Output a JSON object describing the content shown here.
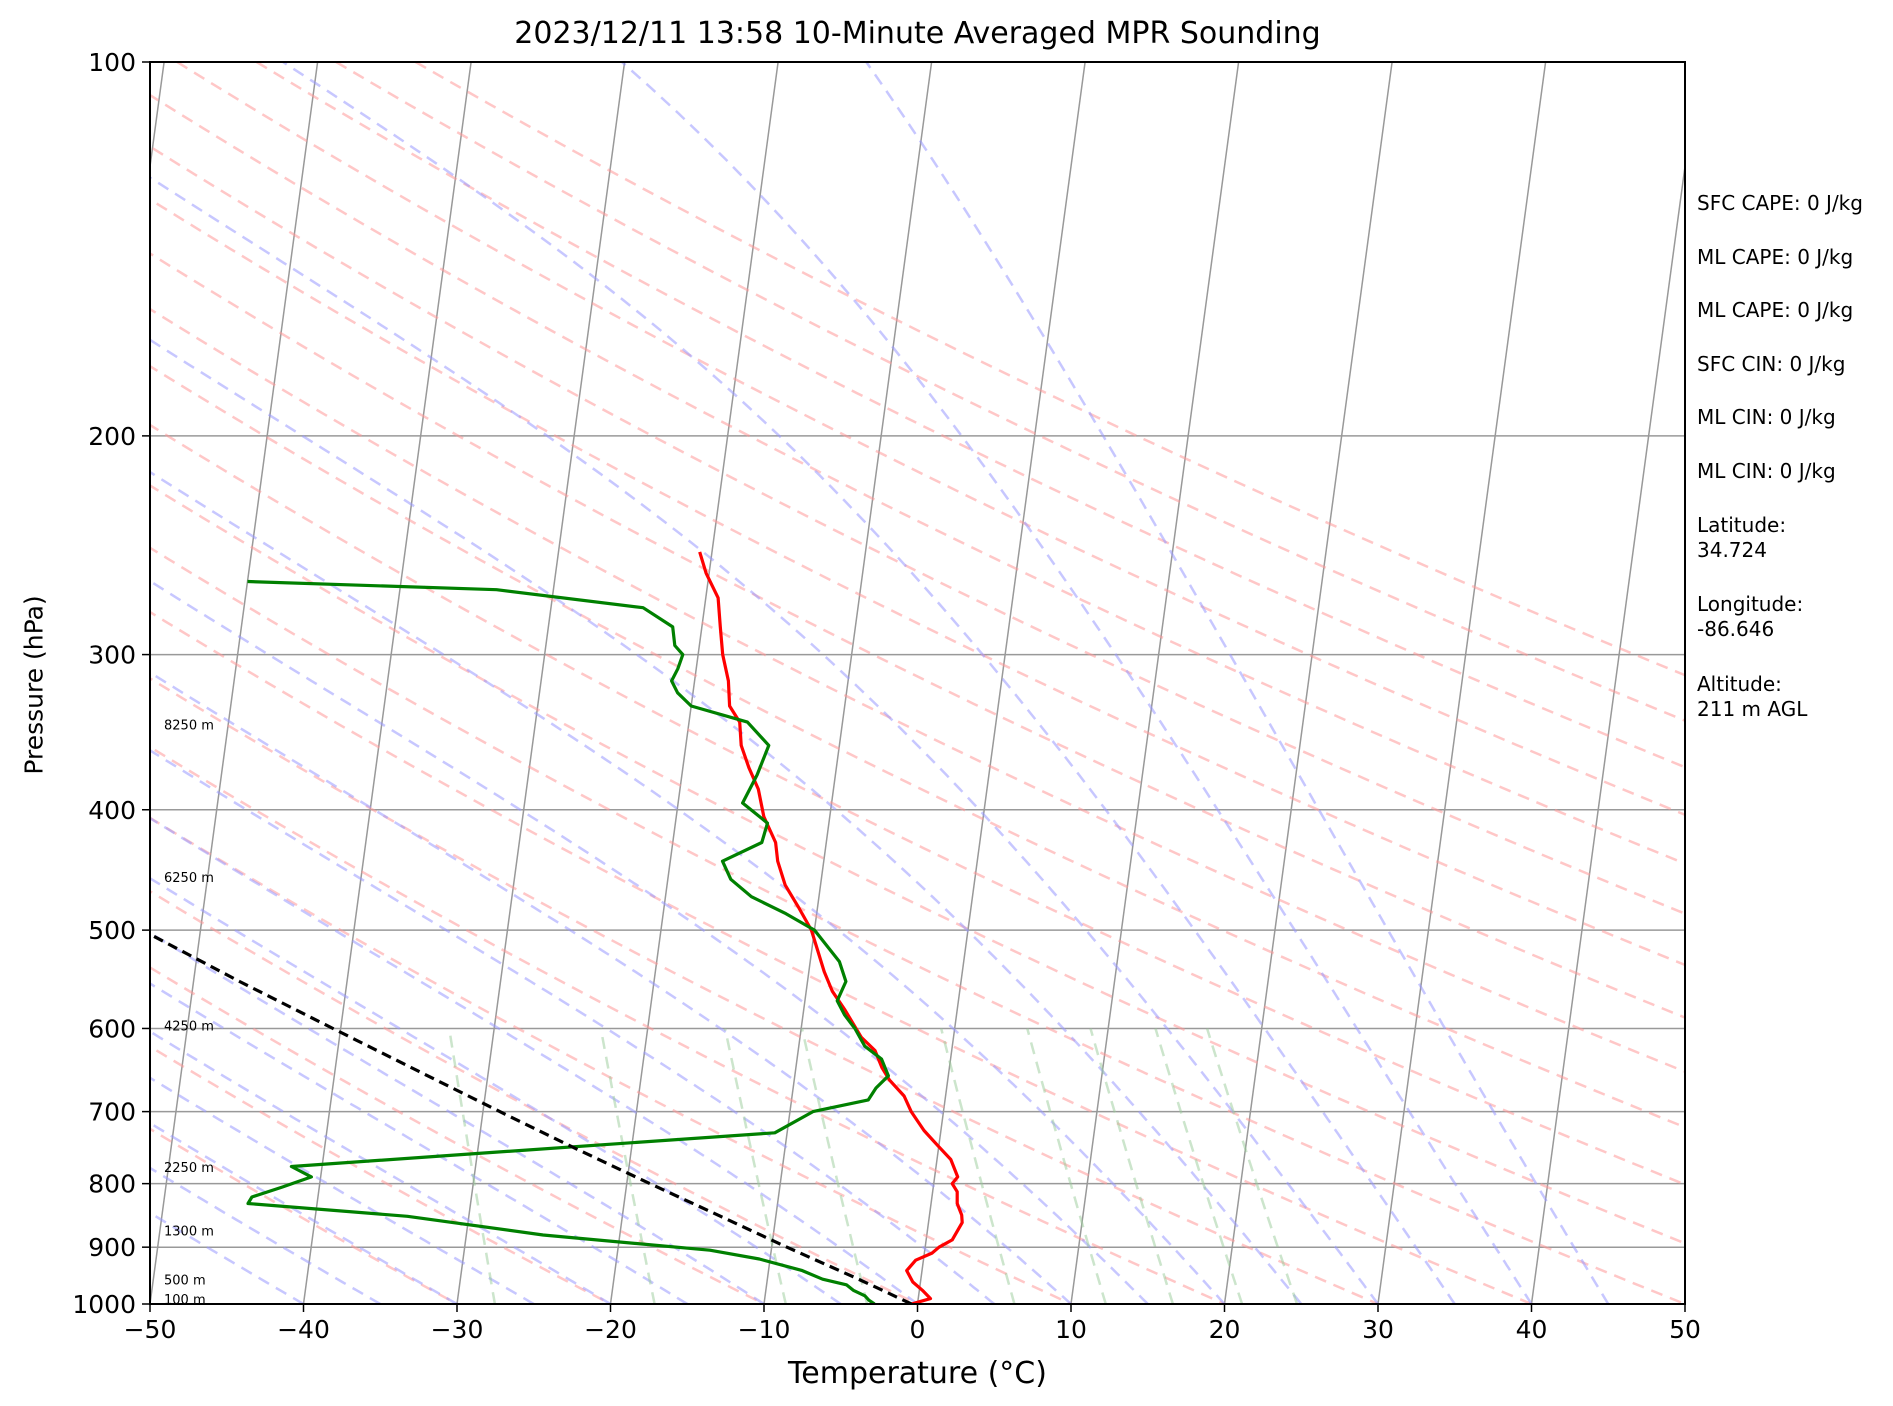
{
  "title": "2023/12/11 13:58 10-Minute Averaged MPR Sounding",
  "side_panel": {
    "sfc_cape": "SFC CAPE: 0 J/kg",
    "ml_cape_1": "ML CAPE: 0 J/kg",
    "ml_cape_2": "ML CAPE: 0 J/kg",
    "sfc_cin": "SFC CIN: 0 J/kg",
    "ml_cin_1": "ML CIN: 0 J/kg",
    "ml_cin_2": "ML CIN: 0 J/kg",
    "latitude_label": "Latitude:",
    "latitude_value": "34.724",
    "longitude_label": "Longitude:",
    "longitude_value": "-86.646",
    "altitude_label": "Altitude:",
    "altitude_value": "211 m AGL"
  },
  "colors": {
    "temperature": "#ff0000",
    "dewpoint": "#008000",
    "parcel": "#000000",
    "dry_adiabat": "#ff9999",
    "moist_adiabat": "#9999ff",
    "mixing_ratio": "#99cc99",
    "isotherm": "#999999",
    "isobar": "#999999"
  },
  "chart_data": {
    "type": "line",
    "title": "2023/12/11 13:58 10-Minute Averaged MPR Sounding",
    "xlabel": "Temperature (°C)",
    "ylabel": "Pressure (hPa)",
    "xlim": [
      -50,
      50
    ],
    "ylim": [
      1000,
      100
    ],
    "y_scale": "log",
    "x_ticks": [
      "−50",
      "−40",
      "−30",
      "−20",
      "−10",
      "0",
      "10",
      "20",
      "30",
      "40",
      "50"
    ],
    "x_tick_values": [
      -50,
      -40,
      -30,
      -20,
      -10,
      0,
      10,
      20,
      30,
      40,
      50
    ],
    "y_ticks": [
      "100",
      "200",
      "300",
      "400",
      "500",
      "600",
      "700",
      "800",
      "900",
      "1000"
    ],
    "y_tick_values": [
      100,
      200,
      300,
      400,
      500,
      600,
      700,
      800,
      900,
      1000
    ],
    "grid": "isobars",
    "skew": "skew-T log-P",
    "height_labels": [
      {
        "text": "8250 m",
        "p": 342
      },
      {
        "text": "6250 m",
        "p": 454
      },
      {
        "text": "4250 m",
        "p": 598
      },
      {
        "text": "2250 m",
        "p": 777
      },
      {
        "text": "1300 m",
        "p": 874
      },
      {
        "text": "500 m",
        "p": 957
      },
      {
        "text": "100 m",
        "p": 993
      }
    ],
    "series": [
      {
        "key": "temperature",
        "points": [
          [
            1000,
            -0.4
          ],
          [
            990,
            0.8
          ],
          [
            975,
            0.2
          ],
          [
            960,
            -0.5
          ],
          [
            940,
            -1.0
          ],
          [
            922,
            -0.5
          ],
          [
            910,
            0.5
          ],
          [
            900,
            0.9
          ],
          [
            888,
            1.7
          ],
          [
            860,
            2.2
          ],
          [
            848,
            2.1
          ],
          [
            830,
            1.7
          ],
          [
            812,
            1.6
          ],
          [
            800,
            1.2
          ],
          [
            790,
            1.5
          ],
          [
            765,
            0.9
          ],
          [
            745,
            -0.1
          ],
          [
            725,
            -1.1
          ],
          [
            700,
            -2.1
          ],
          [
            680,
            -2.7
          ],
          [
            660,
            -3.8
          ],
          [
            645,
            -4.4
          ],
          [
            625,
            -5.0
          ],
          [
            610,
            -6.0
          ],
          [
            580,
            -7.3
          ],
          [
            560,
            -8.3
          ],
          [
            540,
            -9.0
          ],
          [
            500,
            -10.2
          ],
          [
            480,
            -11.2
          ],
          [
            460,
            -12.3
          ],
          [
            440,
            -13.0
          ],
          [
            425,
            -13.3
          ],
          [
            405,
            -14.3
          ],
          [
            385,
            -14.9
          ],
          [
            370,
            -15.7
          ],
          [
            355,
            -16.4
          ],
          [
            340,
            -16.7
          ],
          [
            330,
            -17.5
          ],
          [
            315,
            -17.8
          ],
          [
            300,
            -18.4
          ],
          [
            285,
            -18.8
          ],
          [
            270,
            -19.2
          ],
          [
            258,
            -20.2
          ],
          [
            248,
            -20.8
          ]
        ]
      },
      {
        "key": "dewpoint",
        "points": [
          [
            1000,
            -2.8
          ],
          [
            993,
            -3.2
          ],
          [
            985,
            -3.5
          ],
          [
            975,
            -4.3
          ],
          [
            965,
            -4.8
          ],
          [
            955,
            -6.4
          ],
          [
            940,
            -7.8
          ],
          [
            920,
            -10.7
          ],
          [
            905,
            -14.0
          ],
          [
            880,
            -25.0
          ],
          [
            850,
            -34.0
          ],
          [
            830,
            -44.5
          ],
          [
            820,
            -44.3
          ],
          [
            805,
            -42.4
          ],
          [
            790,
            -40.6
          ],
          [
            775,
            -42.0
          ],
          [
            755,
            -29.0
          ],
          [
            728,
            -10.8
          ],
          [
            700,
            -8.5
          ],
          [
            685,
            -5.0
          ],
          [
            670,
            -4.6
          ],
          [
            655,
            -3.9
          ],
          [
            635,
            -4.5
          ],
          [
            620,
            -5.7
          ],
          [
            600,
            -6.5
          ],
          [
            585,
            -7.3
          ],
          [
            570,
            -7.9
          ],
          [
            550,
            -7.5
          ],
          [
            530,
            -8.1
          ],
          [
            500,
            -10.0
          ],
          [
            485,
            -12.0
          ],
          [
            470,
            -14.4
          ],
          [
            455,
            -15.9
          ],
          [
            440,
            -16.6
          ],
          [
            425,
            -14.2
          ],
          [
            410,
            -14.0
          ],
          [
            395,
            -15.8
          ],
          [
            375,
            -15.1
          ],
          [
            355,
            -14.6
          ],
          [
            340,
            -16.2
          ],
          [
            330,
            -20.0
          ],
          [
            322,
            -21.0
          ],
          [
            315,
            -21.5
          ],
          [
            308,
            -21.2
          ],
          [
            300,
            -21.0
          ],
          [
            295,
            -21.6
          ],
          [
            285,
            -21.9
          ],
          [
            275,
            -24.0
          ],
          [
            266,
            -33.7
          ],
          [
            262,
            -50
          ]
        ]
      },
      {
        "key": "parcel",
        "points": [
          [
            1000,
            -0.4
          ],
          [
            975,
            -2.4
          ],
          [
            950,
            -4.5
          ],
          [
            900,
            -9.0
          ],
          [
            850,
            -13.6
          ],
          [
            800,
            -18.5
          ],
          [
            750,
            -23.6
          ],
          [
            700,
            -28.9
          ],
          [
            650,
            -34.5
          ],
          [
            600,
            -40.5
          ],
          [
            550,
            -47.0
          ],
          [
            500,
            -53.8
          ],
          [
            450,
            -61.2
          ],
          [
            400,
            -69.1
          ],
          [
            350,
            -77.8
          ],
          [
            300,
            -87.3
          ],
          [
            296,
            -88.0
          ]
        ]
      }
    ]
  }
}
